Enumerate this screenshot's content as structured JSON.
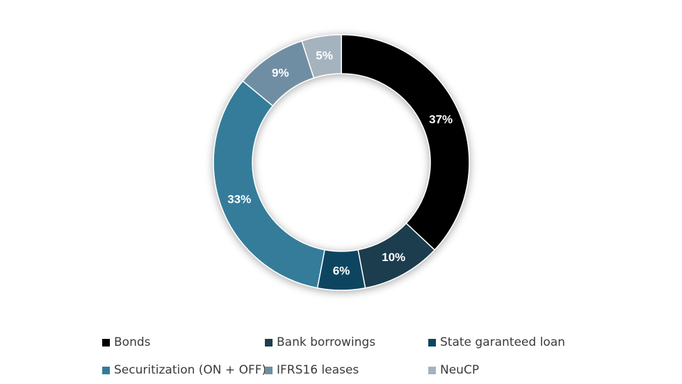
{
  "chart_data": {
    "type": "pie",
    "donut": true,
    "legend_position": "bottom",
    "series": [
      {
        "name": "Bonds",
        "value": 37,
        "label": "37%",
        "color": "#000000"
      },
      {
        "name": "Bank borrowings",
        "value": 10,
        "label": "10%",
        "color": "#1e3d4e"
      },
      {
        "name": "State garanteed loan",
        "value": 6,
        "label": "6%",
        "color": "#0e4560"
      },
      {
        "name": "Securitization (ON + OFF)",
        "value": 33,
        "label": "33%",
        "color": "#347b9a"
      },
      {
        "name": "IFRS16 leases",
        "value": 9,
        "label": "9%",
        "color": "#6f8ea3"
      },
      {
        "name": "NeuCP",
        "value": 5,
        "label": "5%",
        "color": "#a5b3bf"
      }
    ]
  }
}
